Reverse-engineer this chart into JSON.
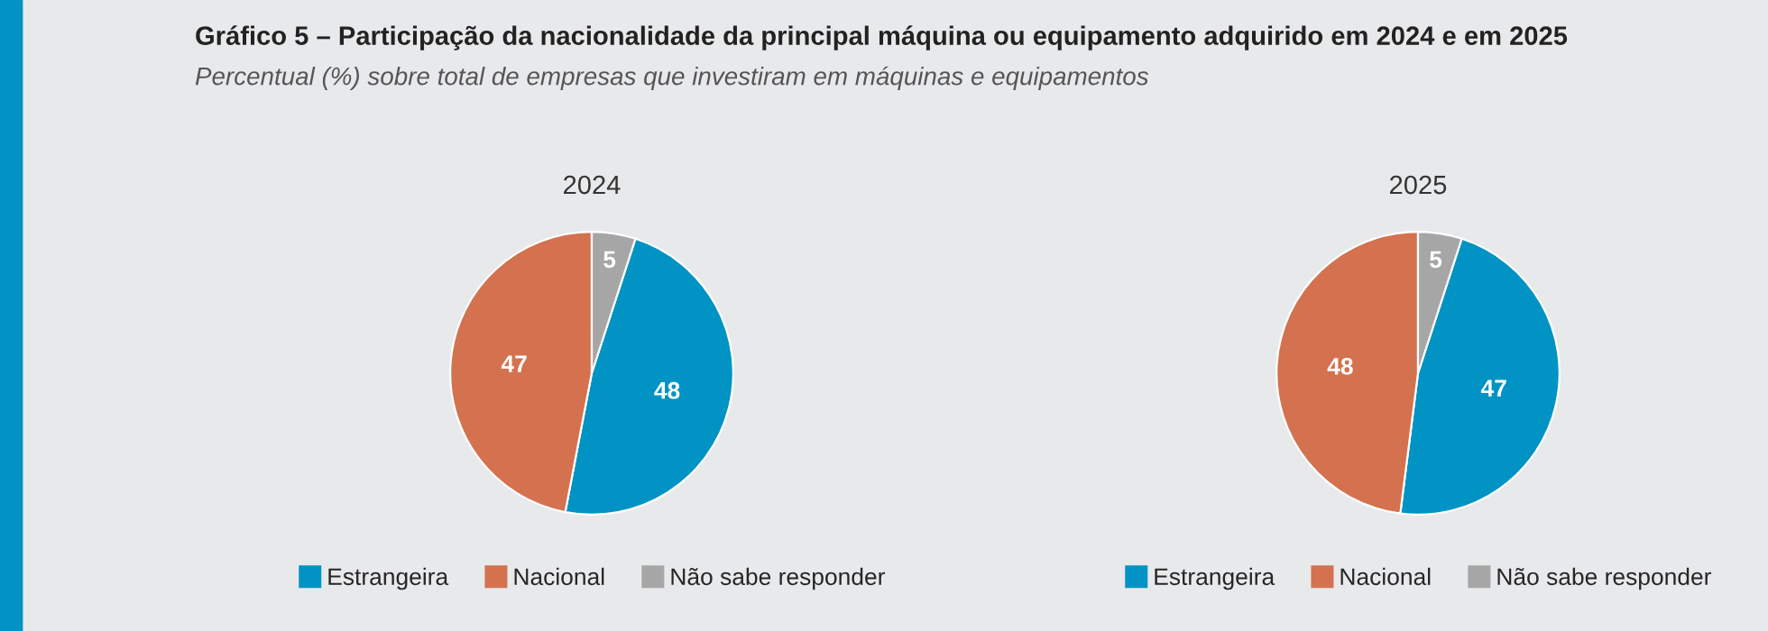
{
  "chart_data": [
    {
      "type": "other",
      "title": "Gráfico 5 – Participação da nacionalidade da principal máquina ou equipamento adquirido em 2024 e em 2025",
      "subtitle": "Percentual (%) sobre total de empresas que investiram em máquinas e equipamentos"
    },
    {
      "type": "pie",
      "title": "2024",
      "categories": [
        "Estrangeira",
        "Nacional",
        "Não sabe responder"
      ],
      "values": [
        48,
        47,
        5
      ],
      "colors": [
        "#0093c4",
        "#d4714f",
        "#a6a6a6"
      ],
      "data_labels": true,
      "legend": "bottom"
    },
    {
      "type": "pie",
      "title": "2025",
      "categories": [
        "Estrangeira",
        "Nacional",
        "Não sabe responder"
      ],
      "values": [
        47,
        48,
        5
      ],
      "colors": [
        "#0093c4",
        "#d4714f",
        "#a6a6a6"
      ],
      "data_labels": true,
      "legend": "bottom"
    }
  ]
}
